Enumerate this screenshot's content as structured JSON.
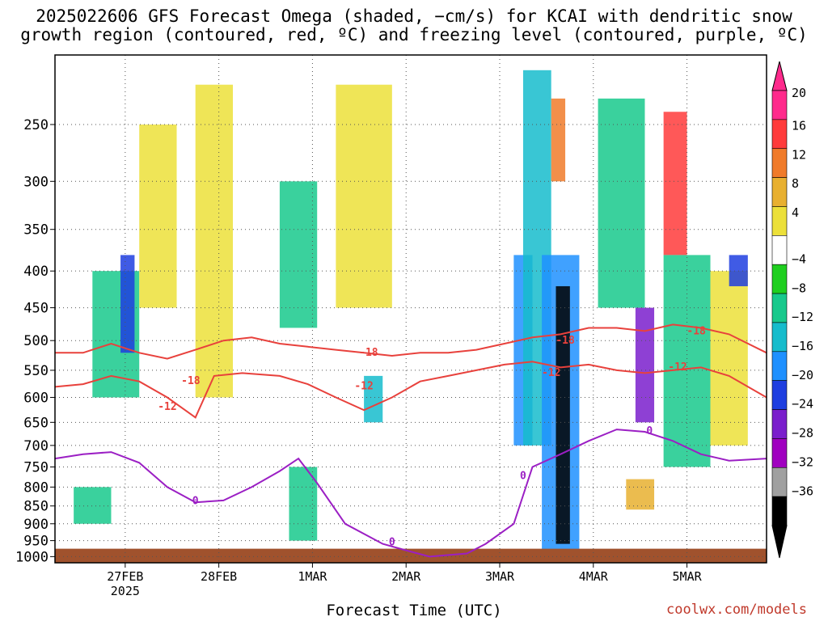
{
  "title_line1": "2025022606 GFS Forecast Omega (shaded, −cm/s) for KCAI with dendritic snow",
  "title_line2": "growth region (contoured, red, ºC) and freezing level (contoured, purple, ºC)",
  "credit": "coolwx.com/models",
  "chart_data": {
    "type": "heatmap",
    "xlabel": "Forecast Time (UTC)",
    "ylabel": "",
    "x_tick_labels": [
      "27FEB",
      "28FEB",
      "1MAR",
      "2MAR",
      "3MAR",
      "4MAR",
      "5MAR"
    ],
    "x_tick_sublabel": "2025",
    "x_range_days": [
      0.0,
      7.6
    ],
    "x_tick_days": [
      0.75,
      1.75,
      2.75,
      3.75,
      4.75,
      5.75,
      6.75
    ],
    "y_tick_labels": [
      "250",
      "300",
      "350",
      "400",
      "450",
      "500",
      "550",
      "600",
      "650",
      "700",
      "750",
      "800",
      "850",
      "900",
      "950",
      "1000"
    ],
    "y_ticks": [
      250,
      300,
      350,
      400,
      450,
      500,
      550,
      600,
      650,
      700,
      750,
      800,
      850,
      900,
      950,
      1000
    ],
    "y_range_hpa": [
      200,
      1020
    ],
    "y_scale": "log",
    "grid": true,
    "colorbar": {
      "labels": [
        "20",
        "16",
        "12",
        "8",
        "4",
        "−4",
        "−8",
        "−12",
        "−16",
        "−20",
        "−24",
        "−28",
        "−32",
        "−36"
      ],
      "colors": [
        "#ff2a8c",
        "#ff3b3b",
        "#f07b2a",
        "#e8b030",
        "#ece03a",
        "#ffffff",
        "#1fcf1f",
        "#18c98c",
        "#16bccc",
        "#1e90ff",
        "#1e3ee0",
        "#7a1ecc",
        "#a000c0",
        "#a0a0a0",
        "#000000"
      ],
      "top_triangle_color": "#ff2a8c",
      "bottom_triangle_color": "#000000"
    },
    "terrain_color": "#a0522d",
    "contour_labels_red": [
      "-18",
      "-12"
    ],
    "contour_label_purple": "0",
    "series": [
      {
        "color": "#e8413c",
        "points_hpa": [
          [
            0.0,
            520
          ],
          [
            0.3,
            520
          ],
          [
            0.6,
            505
          ],
          [
            0.9,
            520
          ],
          [
            1.2,
            530
          ],
          [
            1.5,
            515
          ],
          [
            1.8,
            500
          ],
          [
            2.1,
            495
          ],
          [
            2.4,
            505
          ],
          [
            2.7,
            510
          ],
          [
            3.0,
            515
          ],
          [
            3.3,
            520
          ],
          [
            3.6,
            525
          ],
          [
            3.9,
            520
          ],
          [
            4.2,
            520
          ],
          [
            4.5,
            515
          ],
          [
            4.8,
            505
          ],
          [
            5.1,
            495
          ],
          [
            5.4,
            490
          ],
          [
            5.7,
            480
          ],
          [
            6.0,
            480
          ],
          [
            6.3,
            485
          ],
          [
            6.6,
            475
          ],
          [
            6.9,
            480
          ],
          [
            7.2,
            490
          ],
          [
            7.6,
            520
          ]
        ]
      },
      {
        "color": "#e8413c",
        "points_hpa": [
          [
            0.0,
            580
          ],
          [
            0.3,
            575
          ],
          [
            0.6,
            560
          ],
          [
            0.9,
            570
          ],
          [
            1.2,
            600
          ],
          [
            1.5,
            640
          ],
          [
            1.7,
            560
          ],
          [
            2.0,
            555
          ],
          [
            2.4,
            560
          ],
          [
            2.7,
            575
          ],
          [
            3.0,
            600
          ],
          [
            3.3,
            625
          ],
          [
            3.6,
            600
          ],
          [
            3.9,
            570
          ],
          [
            4.2,
            560
          ],
          [
            4.5,
            550
          ],
          [
            4.8,
            540
          ],
          [
            5.1,
            535
          ],
          [
            5.4,
            545
          ],
          [
            5.7,
            540
          ],
          [
            6.0,
            550
          ],
          [
            6.3,
            555
          ],
          [
            6.6,
            550
          ],
          [
            6.9,
            545
          ],
          [
            7.2,
            560
          ],
          [
            7.6,
            600
          ]
        ]
      },
      {
        "color": "#9b1fc4",
        "points_hpa": [
          [
            0.0,
            730
          ],
          [
            0.3,
            720
          ],
          [
            0.6,
            715
          ],
          [
            0.9,
            740
          ],
          [
            1.2,
            800
          ],
          [
            1.5,
            840
          ],
          [
            1.8,
            835
          ],
          [
            2.1,
            800
          ],
          [
            2.4,
            760
          ],
          [
            2.6,
            730
          ],
          [
            2.8,
            790
          ],
          [
            3.1,
            900
          ],
          [
            3.5,
            960
          ],
          [
            3.75,
            980
          ],
          [
            4.0,
            1000
          ],
          [
            4.4,
            990
          ],
          [
            4.6,
            960
          ],
          [
            4.9,
            900
          ],
          [
            5.1,
            750
          ],
          [
            5.4,
            720
          ],
          [
            5.7,
            690
          ],
          [
            6.0,
            665
          ],
          [
            6.3,
            670
          ],
          [
            6.6,
            690
          ],
          [
            6.9,
            720
          ],
          [
            7.2,
            735
          ],
          [
            7.6,
            730
          ]
        ]
      }
    ],
    "shaded_regions": [
      {
        "x": [
          0.2,
          0.6
        ],
        "p": [
          800,
          900
        ],
        "omega": -10
      },
      {
        "x": [
          0.4,
          0.9
        ],
        "p": [
          400,
          600
        ],
        "omega": -8
      },
      {
        "x": [
          0.7,
          0.85
        ],
        "p": [
          380,
          520
        ],
        "omega": -20
      },
      {
        "x": [
          0.9,
          1.3
        ],
        "p": [
          250,
          450
        ],
        "omega": 6
      },
      {
        "x": [
          1.5,
          1.9
        ],
        "p": [
          220,
          600
        ],
        "omega": 5
      },
      {
        "x": [
          2.4,
          2.8
        ],
        "p": [
          300,
          480
        ],
        "omega": -8
      },
      {
        "x": [
          2.5,
          2.8
        ],
        "p": [
          750,
          950
        ],
        "omega": -10
      },
      {
        "x": [
          3.0,
          3.6
        ],
        "p": [
          220,
          450
        ],
        "omega": 6
      },
      {
        "x": [
          3.3,
          3.5
        ],
        "p": [
          560,
          650
        ],
        "omega": -12
      },
      {
        "x": [
          4.9,
          5.1
        ],
        "p": [
          380,
          700
        ],
        "omega": -16
      },
      {
        "x": [
          5.0,
          5.3
        ],
        "p": [
          210,
          700
        ],
        "omega": -12
      },
      {
        "x": [
          5.2,
          5.6
        ],
        "p": [
          380,
          980
        ],
        "omega": -16
      },
      {
        "x": [
          5.35,
          5.5
        ],
        "p": [
          420,
          960
        ],
        "omega": -36
      },
      {
        "x": [
          5.3,
          5.45
        ],
        "p": [
          230,
          300
        ],
        "omega": 14
      },
      {
        "x": [
          5.8,
          6.3
        ],
        "p": [
          230,
          450
        ],
        "omega": -10
      },
      {
        "x": [
          6.2,
          6.4
        ],
        "p": [
          450,
          650
        ],
        "omega": -24
      },
      {
        "x": [
          6.5,
          6.75
        ],
        "p": [
          240,
          380
        ],
        "omega": 18
      },
      {
        "x": [
          6.5,
          7.0
        ],
        "p": [
          380,
          750
        ],
        "omega": -8
      },
      {
        "x": [
          7.0,
          7.4
        ],
        "p": [
          400,
          700
        ],
        "omega": 6
      },
      {
        "x": [
          7.2,
          7.4
        ],
        "p": [
          380,
          420
        ],
        "omega": -20
      },
      {
        "x": [
          6.1,
          6.4
        ],
        "p": [
          780,
          860
        ],
        "omega": 10
      }
    ]
  }
}
